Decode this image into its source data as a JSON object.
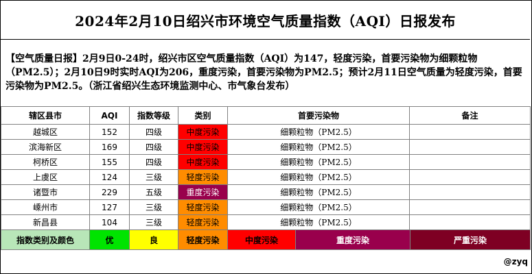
{
  "title": "2024年2月10日绍兴市环境空气质量指数（AQI）日报发布",
  "bulletin": "【空气质量日报】2月9日0-24时，绍兴市区空气质量指数（AQI）为147，轻度污染，首要污染物为细颗粒物（PM2.5）；2月10日9时实时AQI为206，重度污染，首要污染物为PM2.5；预计2月11日空气质量为轻度污染，首要污染物为PM2.5。（浙江省绍兴生态环境监测中心、市气象台发布）",
  "table": {
    "headers": [
      "辖区县市",
      "AQI",
      "指数等级",
      "类别",
      "首要污染物",
      "备注"
    ],
    "rows": [
      {
        "district": "越城区",
        "aqi": "152",
        "level": "四级",
        "category": "中度污染",
        "color": "#ff0000",
        "pollutant": "细颗粒物（PM2.5）",
        "note": ""
      },
      {
        "district": "滨海新区",
        "aqi": "169",
        "level": "四级",
        "category": "中度污染",
        "color": "#ff0000",
        "pollutant": "细颗粒物（PM2.5）",
        "note": ""
      },
      {
        "district": "柯桥区",
        "aqi": "155",
        "level": "四级",
        "category": "中度污染",
        "color": "#ff0000",
        "pollutant": "细颗粒物（PM2.5）",
        "note": ""
      },
      {
        "district": "上虞区",
        "aqi": "124",
        "level": "三级",
        "category": "轻度污染",
        "color": "#ff8c00",
        "pollutant": "细颗粒物（PM2.5）",
        "note": ""
      },
      {
        "district": "诸暨市",
        "aqi": "229",
        "level": "五级",
        "category": "重度污染",
        "color": "#99004c",
        "pollutant": "细颗粒物（PM2.5）",
        "note": ""
      },
      {
        "district": "嵊州市",
        "aqi": "127",
        "level": "三级",
        "category": "轻度污染",
        "color": "#ff8c00",
        "pollutant": "细颗粒物（PM2.5）",
        "note": ""
      },
      {
        "district": "新昌县",
        "aqi": "104",
        "level": "三级",
        "category": "轻度污染",
        "color": "#ff8c00",
        "pollutant": "细颗粒物（PM2.5）",
        "note": ""
      }
    ]
  },
  "legend": {
    "label": "指数类别及颜色",
    "label_bg": "#b8e6b8",
    "items": [
      {
        "name": "优",
        "color": "#00e400"
      },
      {
        "name": "良",
        "color": "#ffff00"
      },
      {
        "name": "轻度污染",
        "color": "#ff8c00"
      },
      {
        "name": "中度污染",
        "color": "#ff0000"
      },
      {
        "name": "重度污染",
        "color": "#99004c"
      },
      {
        "name": "严重污染",
        "color": "#7e0023"
      }
    ]
  },
  "footer": "@zyq"
}
